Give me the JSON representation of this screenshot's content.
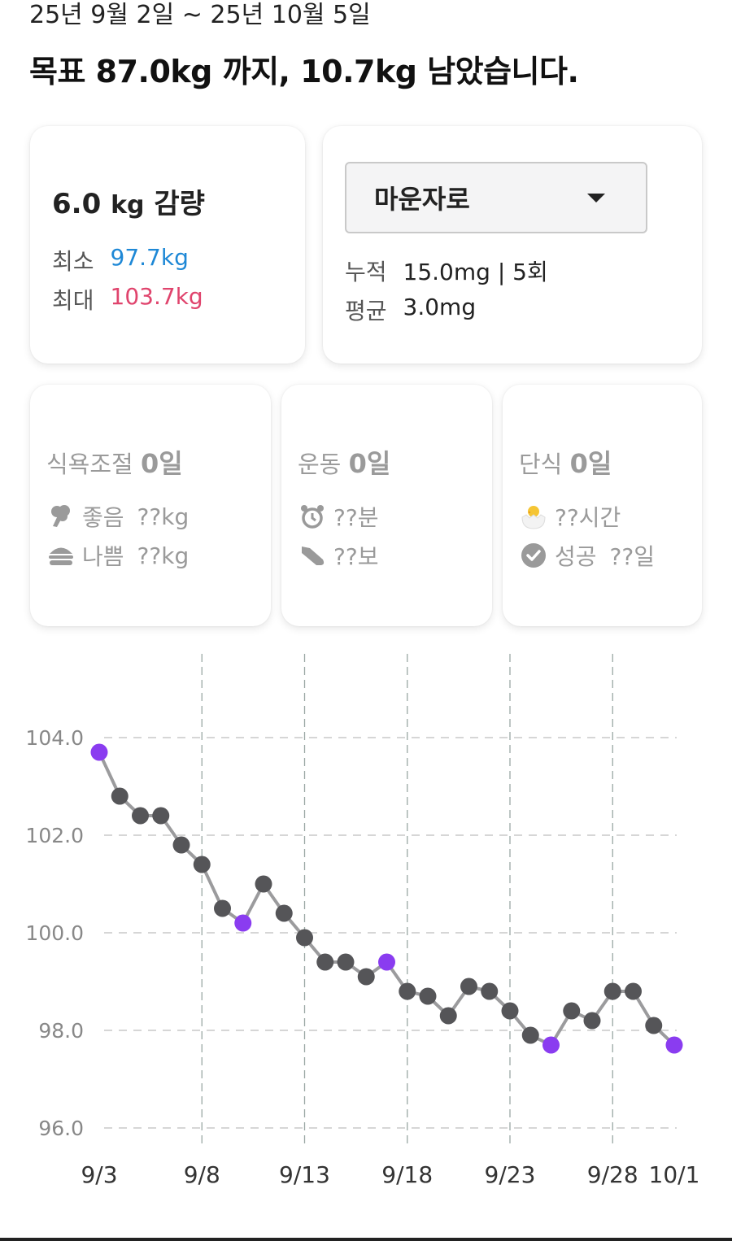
{
  "header": {
    "date_range": "25년 9월 2일 ~ 25년 10월 5일",
    "goal_text": "목표 87.0kg 까지, 10.7kg 남았습니다."
  },
  "loss_card": {
    "value": "6.0",
    "unit": "kg",
    "suffix": "감량",
    "min_label": "최소",
    "min_value": "97.7kg",
    "max_label": "최대",
    "max_value": "103.7kg",
    "min_color": "#1e88d6",
    "max_color": "#e0446d"
  },
  "medication_card": {
    "selected": "마운자로",
    "cumulative_label": "누적",
    "cumulative_value": "15.0mg | 5회",
    "average_label": "평균",
    "average_value": "3.0mg"
  },
  "diet_card": {
    "title": "식욕조절",
    "days": "0일",
    "good_label": "좋음",
    "good_value": "??kg",
    "bad_label": "나쁨",
    "bad_value": "??kg",
    "good_icon": "broccoli-icon",
    "bad_icon": "burger-icon"
  },
  "exercise_card": {
    "title": "운동",
    "days": "0일",
    "time_value": "??분",
    "steps_value": "??보",
    "time_icon": "alarm-clock-icon",
    "steps_icon": "sneaker-icon"
  },
  "fasting_card": {
    "title": "단식",
    "days": "0일",
    "hours_value": "??시간",
    "success_label": "성공",
    "success_value": "??일",
    "hours_icon": "hatching-chick-icon",
    "success_icon": "check-circle-icon"
  },
  "chart_data": {
    "type": "line",
    "ylim": [
      96,
      104
    ],
    "yticks": [
      "104.0",
      "102.0",
      "100.0",
      "98.0",
      "96.0"
    ],
    "ytick_values": [
      104,
      102,
      100,
      98,
      96
    ],
    "x_labels": [
      "9/3",
      "9/8",
      "9/13",
      "9/18",
      "9/23",
      "9/28",
      "10/1"
    ],
    "x_label_days": [
      0,
      5,
      10,
      15,
      20,
      25,
      28
    ],
    "vertical_grid_days": [
      5,
      10,
      15,
      20,
      25
    ],
    "x_days_from_9_3": [
      0,
      1,
      2,
      3,
      4,
      5,
      6,
      7,
      8,
      9,
      10,
      11,
      12,
      13,
      14,
      15,
      16,
      17,
      18,
      19,
      20,
      21,
      22,
      23,
      24,
      25,
      26,
      27,
      28
    ],
    "values": [
      103.7,
      102.8,
      102.4,
      102.4,
      101.8,
      101.4,
      100.5,
      100.2,
      101.0,
      100.4,
      99.9,
      99.4,
      99.4,
      99.1,
      99.4,
      98.8,
      98.7,
      98.3,
      98.9,
      98.8,
      98.4,
      97.9,
      97.7,
      98.4,
      98.2,
      98.8,
      98.8,
      98.1,
      97.7
    ],
    "highlight_indices": [
      0,
      7,
      14,
      22,
      28
    ],
    "colors": {
      "point": "#555558",
      "highlight": "#8a3cf0",
      "line": "#9b9b9d",
      "grid": "#d6d6d6",
      "vgrid": "#9aa8a4",
      "tick": "#888888",
      "xlabel": "#333333"
    }
  }
}
